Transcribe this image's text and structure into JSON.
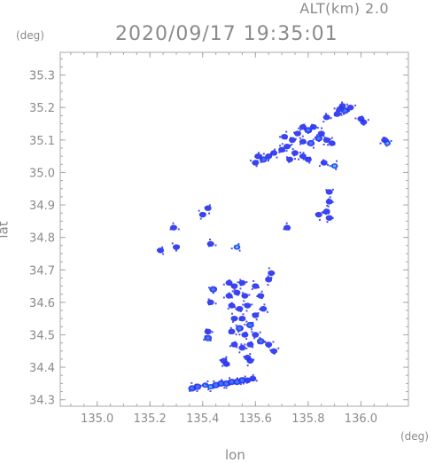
{
  "header": {
    "altitude_label": "ALT(km) 2.0",
    "timestamp": "2020/09/17 19:35:01"
  },
  "chart_data": {
    "type": "scatter",
    "title": "2020/09/17 19:35:01",
    "xlabel": "lon",
    "ylabel": "lat",
    "x_unit": "(deg)",
    "y_unit": "(deg)",
    "xlim": [
      134.86,
      136.18
    ],
    "ylim": [
      34.28,
      35.37
    ],
    "x_ticks": [
      "135.0",
      "135.2",
      "135.4",
      "135.6",
      "135.8",
      "136.0"
    ],
    "y_ticks": [
      "34.3",
      "34.4",
      "34.5",
      "34.6",
      "34.7",
      "34.8",
      "34.9",
      "35.0",
      "35.1",
      "35.2",
      "35.3"
    ],
    "grid": false,
    "colors": {
      "weak": "#2a34f0",
      "moderate": "#3c7cf5",
      "strong": "#30d2ee",
      "axis": "#a8a8a8"
    },
    "echo_cells": [
      {
        "lon": 135.94,
        "lat": 35.19,
        "level": "moderate"
      },
      {
        "lon": 135.93,
        "lat": 35.205,
        "level": "weak"
      },
      {
        "lon": 135.92,
        "lat": 35.195,
        "level": "weak"
      },
      {
        "lon": 135.96,
        "lat": 35.2,
        "level": "weak"
      },
      {
        "lon": 135.91,
        "lat": 35.18,
        "level": "weak"
      },
      {
        "lon": 136.0,
        "lat": 35.165,
        "level": "weak"
      },
      {
        "lon": 136.01,
        "lat": 35.155,
        "level": "weak"
      },
      {
        "lon": 135.87,
        "lat": 35.17,
        "level": "weak"
      },
      {
        "lon": 135.78,
        "lat": 35.14,
        "level": "weak"
      },
      {
        "lon": 135.8,
        "lat": 35.13,
        "level": "moderate"
      },
      {
        "lon": 135.82,
        "lat": 35.14,
        "level": "weak"
      },
      {
        "lon": 135.85,
        "lat": 35.12,
        "level": "weak"
      },
      {
        "lon": 135.84,
        "lat": 35.105,
        "level": "moderate"
      },
      {
        "lon": 135.87,
        "lat": 35.1,
        "level": "weak"
      },
      {
        "lon": 135.89,
        "lat": 35.09,
        "level": "weak"
      },
      {
        "lon": 135.76,
        "lat": 35.12,
        "level": "weak"
      },
      {
        "lon": 135.74,
        "lat": 35.1,
        "level": "weak"
      },
      {
        "lon": 135.78,
        "lat": 35.095,
        "level": "weak"
      },
      {
        "lon": 135.81,
        "lat": 35.09,
        "level": "moderate"
      },
      {
        "lon": 135.72,
        "lat": 35.08,
        "level": "weak"
      },
      {
        "lon": 135.7,
        "lat": 35.07,
        "level": "weak"
      },
      {
        "lon": 135.67,
        "lat": 35.06,
        "level": "weak"
      },
      {
        "lon": 135.65,
        "lat": 35.05,
        "level": "weak"
      },
      {
        "lon": 135.63,
        "lat": 35.04,
        "level": "moderate"
      },
      {
        "lon": 135.61,
        "lat": 35.05,
        "level": "weak"
      },
      {
        "lon": 135.6,
        "lat": 35.03,
        "level": "weak"
      },
      {
        "lon": 135.75,
        "lat": 35.06,
        "level": "weak"
      },
      {
        "lon": 135.78,
        "lat": 35.05,
        "level": "weak"
      },
      {
        "lon": 135.8,
        "lat": 35.04,
        "level": "weak"
      },
      {
        "lon": 135.73,
        "lat": 35.04,
        "level": "weak"
      },
      {
        "lon": 135.86,
        "lat": 35.03,
        "level": "weak"
      },
      {
        "lon": 135.9,
        "lat": 35.02,
        "level": "strong"
      },
      {
        "lon": 136.1,
        "lat": 35.09,
        "level": "strong"
      },
      {
        "lon": 136.09,
        "lat": 35.1,
        "level": "weak"
      },
      {
        "lon": 135.71,
        "lat": 35.11,
        "level": "weak"
      },
      {
        "lon": 135.88,
        "lat": 34.94,
        "level": "weak"
      },
      {
        "lon": 135.88,
        "lat": 34.91,
        "level": "weak"
      },
      {
        "lon": 135.87,
        "lat": 34.88,
        "level": "weak"
      },
      {
        "lon": 135.84,
        "lat": 34.87,
        "level": "weak"
      },
      {
        "lon": 135.88,
        "lat": 34.86,
        "level": "weak"
      },
      {
        "lon": 135.72,
        "lat": 34.83,
        "level": "weak"
      },
      {
        "lon": 135.42,
        "lat": 34.89,
        "level": "weak"
      },
      {
        "lon": 135.4,
        "lat": 34.87,
        "level": "weak"
      },
      {
        "lon": 135.29,
        "lat": 34.83,
        "level": "weak"
      },
      {
        "lon": 135.24,
        "lat": 34.76,
        "level": "weak"
      },
      {
        "lon": 135.3,
        "lat": 34.77,
        "level": "weak"
      },
      {
        "lon": 135.43,
        "lat": 34.78,
        "level": "weak"
      },
      {
        "lon": 135.53,
        "lat": 34.77,
        "level": "strong"
      },
      {
        "lon": 135.44,
        "lat": 34.64,
        "level": "moderate"
      },
      {
        "lon": 135.43,
        "lat": 34.6,
        "level": "weak"
      },
      {
        "lon": 135.5,
        "lat": 34.66,
        "level": "weak"
      },
      {
        "lon": 135.52,
        "lat": 34.65,
        "level": "weak"
      },
      {
        "lon": 135.55,
        "lat": 34.66,
        "level": "weak"
      },
      {
        "lon": 135.5,
        "lat": 34.62,
        "level": "weak"
      },
      {
        "lon": 135.53,
        "lat": 34.63,
        "level": "weak"
      },
      {
        "lon": 135.56,
        "lat": 34.62,
        "level": "weak"
      },
      {
        "lon": 135.51,
        "lat": 34.59,
        "level": "weak"
      },
      {
        "lon": 135.54,
        "lat": 34.58,
        "level": "weak"
      },
      {
        "lon": 135.57,
        "lat": 34.59,
        "level": "weak"
      },
      {
        "lon": 135.6,
        "lat": 34.65,
        "level": "weak"
      },
      {
        "lon": 135.62,
        "lat": 34.62,
        "level": "weak"
      },
      {
        "lon": 135.65,
        "lat": 34.67,
        "level": "weak"
      },
      {
        "lon": 135.66,
        "lat": 34.69,
        "level": "weak"
      },
      {
        "lon": 135.63,
        "lat": 34.58,
        "level": "weak"
      },
      {
        "lon": 135.6,
        "lat": 34.56,
        "level": "weak"
      },
      {
        "lon": 135.52,
        "lat": 34.55,
        "level": "weak"
      },
      {
        "lon": 135.55,
        "lat": 34.55,
        "level": "weak"
      },
      {
        "lon": 135.58,
        "lat": 34.53,
        "level": "moderate"
      },
      {
        "lon": 135.54,
        "lat": 34.52,
        "level": "moderate"
      },
      {
        "lon": 135.51,
        "lat": 34.51,
        "level": "weak"
      },
      {
        "lon": 135.56,
        "lat": 34.5,
        "level": "weak"
      },
      {
        "lon": 135.6,
        "lat": 34.5,
        "level": "weak"
      },
      {
        "lon": 135.62,
        "lat": 34.48,
        "level": "moderate"
      },
      {
        "lon": 135.58,
        "lat": 34.47,
        "level": "weak"
      },
      {
        "lon": 135.65,
        "lat": 34.47,
        "level": "weak"
      },
      {
        "lon": 135.55,
        "lat": 34.46,
        "level": "weak"
      },
      {
        "lon": 135.52,
        "lat": 34.47,
        "level": "weak"
      },
      {
        "lon": 135.67,
        "lat": 34.45,
        "level": "weak"
      },
      {
        "lon": 135.42,
        "lat": 34.51,
        "level": "weak"
      },
      {
        "lon": 135.42,
        "lat": 34.49,
        "level": "moderate"
      },
      {
        "lon": 135.57,
        "lat": 34.43,
        "level": "weak"
      },
      {
        "lon": 135.58,
        "lat": 34.42,
        "level": "weak"
      },
      {
        "lon": 135.49,
        "lat": 34.41,
        "level": "weak"
      },
      {
        "lon": 135.48,
        "lat": 34.42,
        "level": "weak"
      },
      {
        "lon": 135.38,
        "lat": 34.34,
        "level": "moderate"
      },
      {
        "lon": 135.36,
        "lat": 34.335,
        "level": "moderate"
      },
      {
        "lon": 135.41,
        "lat": 34.345,
        "level": "strong"
      },
      {
        "lon": 135.43,
        "lat": 34.34,
        "level": "strong"
      },
      {
        "lon": 135.45,
        "lat": 34.345,
        "level": "moderate"
      },
      {
        "lon": 135.47,
        "lat": 34.35,
        "level": "moderate"
      },
      {
        "lon": 135.49,
        "lat": 34.35,
        "level": "moderate"
      },
      {
        "lon": 135.51,
        "lat": 34.355,
        "level": "moderate"
      },
      {
        "lon": 135.53,
        "lat": 34.355,
        "level": "moderate"
      },
      {
        "lon": 135.55,
        "lat": 34.36,
        "level": "moderate"
      },
      {
        "lon": 135.57,
        "lat": 34.36,
        "level": "weak"
      },
      {
        "lon": 135.59,
        "lat": 34.365,
        "level": "weak"
      }
    ]
  }
}
